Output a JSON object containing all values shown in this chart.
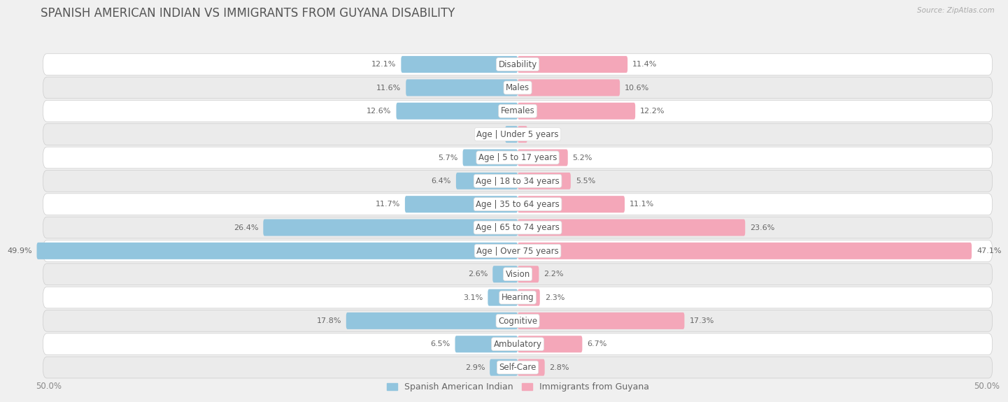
{
  "title": "SPANISH AMERICAN INDIAN VS IMMIGRANTS FROM GUYANA DISABILITY",
  "source": "Source: ZipAtlas.com",
  "categories": [
    "Disability",
    "Males",
    "Females",
    "Age | Under 5 years",
    "Age | 5 to 17 years",
    "Age | 18 to 34 years",
    "Age | 35 to 64 years",
    "Age | 65 to 74 years",
    "Age | Over 75 years",
    "Vision",
    "Hearing",
    "Cognitive",
    "Ambulatory",
    "Self-Care"
  ],
  "left_values": [
    12.1,
    11.6,
    12.6,
    1.3,
    5.7,
    6.4,
    11.7,
    26.4,
    49.9,
    2.6,
    3.1,
    17.8,
    6.5,
    2.9
  ],
  "right_values": [
    11.4,
    10.6,
    12.2,
    1.0,
    5.2,
    5.5,
    11.1,
    23.6,
    47.1,
    2.2,
    2.3,
    17.3,
    6.7,
    2.8
  ],
  "left_color": "#92C5DE",
  "right_color": "#F4A7B9",
  "left_label": "Spanish American Indian",
  "right_label": "Immigrants from Guyana",
  "axis_max": 50.0,
  "title_fontsize": 12,
  "label_fontsize": 8.5,
  "value_fontsize": 8.0
}
